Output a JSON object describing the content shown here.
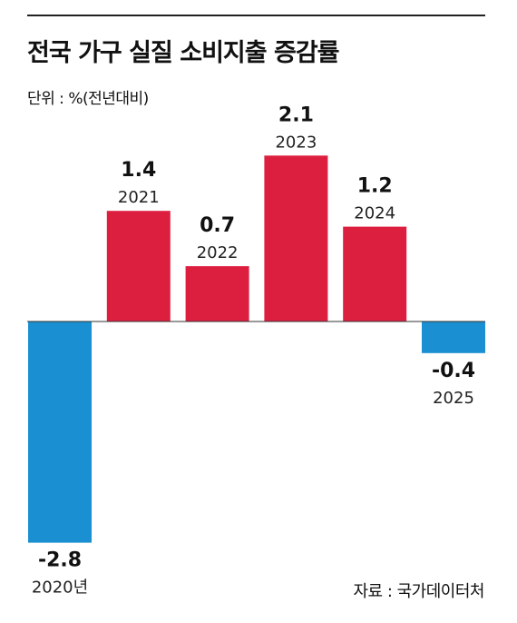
{
  "title": "전국 가구 실질 소비지출 증감률",
  "unit_label": "단위 : %(전년대비)",
  "source": "자료 : 국가데이터처",
  "colors": {
    "positive": "#dc1f3f",
    "negative": "#1a8fd1",
    "axis": "#333333",
    "rule": "#222222"
  },
  "chart_data": {
    "type": "bar",
    "categories": [
      "2020년",
      "2021",
      "2022",
      "2023",
      "2024",
      "2025"
    ],
    "values": [
      -2.8,
      1.4,
      0.7,
      2.1,
      1.2,
      -0.4
    ],
    "value_labels": [
      "-2.8",
      "1.4",
      "0.7",
      "2.1",
      "1.2",
      "-0.4"
    ],
    "title": "전국 가구 실질 소비지출 증감률",
    "ylabel": "",
    "xlabel": "",
    "ylim": [
      -2.8,
      2.1
    ],
    "grid": false,
    "legend": "none"
  }
}
